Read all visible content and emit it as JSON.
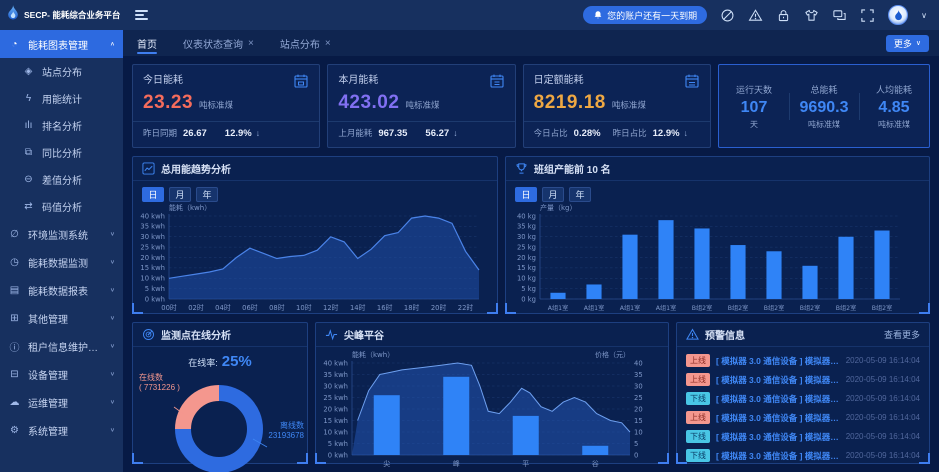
{
  "app": {
    "title": "SECP- 能耗综合业务平台"
  },
  "sidebar": {
    "groups": [
      {
        "label": "能耗图表管理",
        "icon": "chart-clock-icon",
        "active": true,
        "expanded": true,
        "children": [
          {
            "label": "站点分布",
            "icon": "site-distribution-icon"
          },
          {
            "label": "用能统计",
            "icon": "energy-stats-icon"
          },
          {
            "label": "排名分析",
            "icon": "ranking-icon"
          },
          {
            "label": "同比分析",
            "icon": "compare-icon"
          },
          {
            "label": "差值分析",
            "icon": "difference-icon"
          },
          {
            "label": "码值分析",
            "icon": "code-value-icon"
          }
        ]
      },
      {
        "label": "环境监测系统",
        "icon": "environment-icon"
      },
      {
        "label": "能耗数据监测",
        "icon": "data-monitor-icon"
      },
      {
        "label": "能耗数据报表",
        "icon": "data-report-icon"
      },
      {
        "label": "其他管理",
        "icon": "other-mgmt-icon"
      },
      {
        "label": "租户信息维护管理",
        "icon": "tenant-info-icon"
      },
      {
        "label": "设备管理",
        "icon": "device-mgmt-icon"
      },
      {
        "label": "运维管理",
        "icon": "ops-mgmt-icon"
      },
      {
        "label": "系统管理",
        "icon": "system-mgmt-icon"
      }
    ]
  },
  "topbar": {
    "notice": "您的账户还有一天到期",
    "icons": [
      "ban-icon",
      "warning-icon",
      "lock-icon",
      "skin-icon",
      "screens-icon",
      "fullscreen-icon"
    ]
  },
  "tabbar": {
    "tabs": [
      {
        "label": "首页",
        "active": true,
        "closable": false
      },
      {
        "label": "仪表状态查询",
        "active": false,
        "closable": true
      },
      {
        "label": "站点分布",
        "active": false,
        "closable": true
      }
    ],
    "more_label": "更多",
    "accent": "#2e6be0"
  },
  "kpi_cards": [
    {
      "title": "今日能耗",
      "value": "23.23",
      "unit": "吨标准煤",
      "color": "#f56c5c",
      "icon": "calendar-today-icon",
      "footer": [
        {
          "label": "昨日同期",
          "value": "26.67"
        },
        {
          "label": "",
          "value": "12.9%",
          "arrow": "↓"
        }
      ]
    },
    {
      "title": "本月能耗",
      "value": "423.02",
      "unit": "吨标准煤",
      "color": "#8170f2",
      "icon": "calendar-month-icon",
      "footer": [
        {
          "label": "上月能耗",
          "value": "967.35"
        },
        {
          "label": "",
          "value": "56.27",
          "arrow": "↓"
        }
      ]
    },
    {
      "title": "日定额能耗",
      "value": "8219.18",
      "unit": "吨标准煤",
      "color": "#efa843",
      "icon": "calendar-quota-icon",
      "footer": [
        {
          "label": "今日占比",
          "value": "0.28%"
        },
        {
          "label": "昨日占比",
          "value": "12.9%",
          "arrow": "↓"
        }
      ]
    }
  ],
  "stats": [
    {
      "label": "运行天数",
      "value": "107",
      "unit": "天"
    },
    {
      "label": "总能耗",
      "value": "9690.3",
      "unit": "吨标准煤"
    },
    {
      "label": "人均能耗",
      "value": "4.85",
      "unit": "吨标准煤"
    }
  ],
  "chart_data": [
    {
      "type": "area",
      "title": "总用能趋势分析",
      "icon": "line-chart-icon",
      "tabs": [
        "日",
        "月",
        "年"
      ],
      "active_tab": "日",
      "ylabel": "能耗（kwh）",
      "ytick_suffix": " kwh",
      "ylim": [
        0,
        40
      ],
      "ystep": 5,
      "x_labels": [
        "00时",
        "02时",
        "04时",
        "06时",
        "08时",
        "10时",
        "12时",
        "14时",
        "16时",
        "18时",
        "20时",
        "22时"
      ],
      "values": [
        10,
        11,
        12,
        13,
        14.5,
        20,
        24.5,
        22,
        19.5,
        20.5,
        21,
        23.5,
        30,
        27.5,
        19.5,
        24,
        30.5,
        32,
        39,
        40,
        39,
        36.5,
        23,
        14
      ],
      "line_color": "#4a83e8",
      "fill_color": "#1f4fa5"
    },
    {
      "type": "bar",
      "title": "班组产能前 10 名",
      "icon": "trophy-icon",
      "tabs": [
        "日",
        "月",
        "年"
      ],
      "active_tab": "日",
      "ylabel": "产量（kg）",
      "ytick_suffix": " kg",
      "ylim": [
        0,
        40
      ],
      "ystep": 5,
      "categories": [
        "A组1室",
        "A组1室",
        "A组1室",
        "A组1室",
        "B组2室",
        "B组2室",
        "B组2室",
        "B组2室",
        "B组2室",
        "B组2室"
      ],
      "values": [
        3,
        7,
        31,
        38,
        34,
        26,
        23,
        16,
        30,
        33
      ],
      "bar_color": "#2f83f7"
    },
    {
      "type": "pie",
      "title": "监测点在线分析",
      "icon": "radar-icon",
      "rate_label": "在线率:",
      "rate_value": "25%",
      "slices": [
        {
          "name": "在线数",
          "display": "( 7731226 )",
          "value": 7731226,
          "color": "#f4978e"
        },
        {
          "name": "离线数",
          "display": "23193678",
          "value": 23193678,
          "color": "#2e6be0"
        }
      ]
    },
    {
      "type": "bar-area",
      "title": "尖峰平谷",
      "icon": "pulse-icon",
      "ylabel_left": "能耗（kwh）",
      "ylabel_right": "价格（元）",
      "ytick_suffix": " kwh",
      "ylim": [
        0,
        40
      ],
      "ystep": 5,
      "categories": [
        "尖",
        "峰",
        "平",
        "谷"
      ],
      "bar_values": [
        26,
        34,
        17,
        4
      ],
      "bar_color": "#2f83f7",
      "price_line": [
        [
          0.02,
          15
        ],
        [
          0.06,
          28
        ],
        [
          0.1,
          35
        ],
        [
          0.14,
          36
        ],
        [
          0.18,
          37
        ],
        [
          0.25,
          38
        ],
        [
          0.32,
          39
        ],
        [
          0.38,
          40
        ],
        [
          0.43,
          39
        ],
        [
          0.46,
          30
        ],
        [
          0.49,
          19
        ],
        [
          0.53,
          18
        ],
        [
          0.57,
          23
        ],
        [
          0.61,
          29
        ],
        [
          0.64,
          27
        ],
        [
          0.68,
          21
        ],
        [
          0.72,
          19
        ],
        [
          0.76,
          23
        ],
        [
          0.8,
          25
        ],
        [
          0.84,
          23
        ],
        [
          0.88,
          18
        ],
        [
          0.93,
          15
        ],
        [
          0.97,
          14
        ],
        [
          1.0,
          10
        ]
      ],
      "line_color": "#6ea0f0",
      "fill_color": "#2458b8"
    }
  ],
  "warnings": {
    "title": "预警信息",
    "icon": "alert-icon",
    "more_label": "查看更多",
    "items": [
      {
        "status": "上线",
        "text": "[ 模拟器 3.0 通信设备 ] 模拟器 3.0...",
        "time": "2020-05-09 16:14:04"
      },
      {
        "status": "上线",
        "text": "[ 模拟器 3.0 通信设备 ] 模拟器 3.0...",
        "time": "2020-05-09 16:14:04"
      },
      {
        "status": "下线",
        "text": "[ 模拟器 3.0 通信设备 ] 模拟器 3.0...",
        "time": "2020-05-09 16:14:04"
      },
      {
        "status": "上线",
        "text": "[ 模拟器 3.0 通信设备 ] 模拟器 3.0...",
        "time": "2020-05-09 16:14:04"
      },
      {
        "status": "下线",
        "text": "[ 模拟器 3.0 通信设备 ] 模拟器 3.0...",
        "time": "2020-05-09 16:14:04"
      },
      {
        "status": "下线",
        "text": "[ 模拟器 3.0 通信设备 ] 模拟器 3.0...",
        "time": "2020-05-09 16:14:04"
      },
      {
        "status": "下线",
        "text": "[ 模拟器 3.0 通信设备 ] 模拟器 3.0...",
        "time": "2020-05-09 16:14:04"
      }
    ]
  }
}
